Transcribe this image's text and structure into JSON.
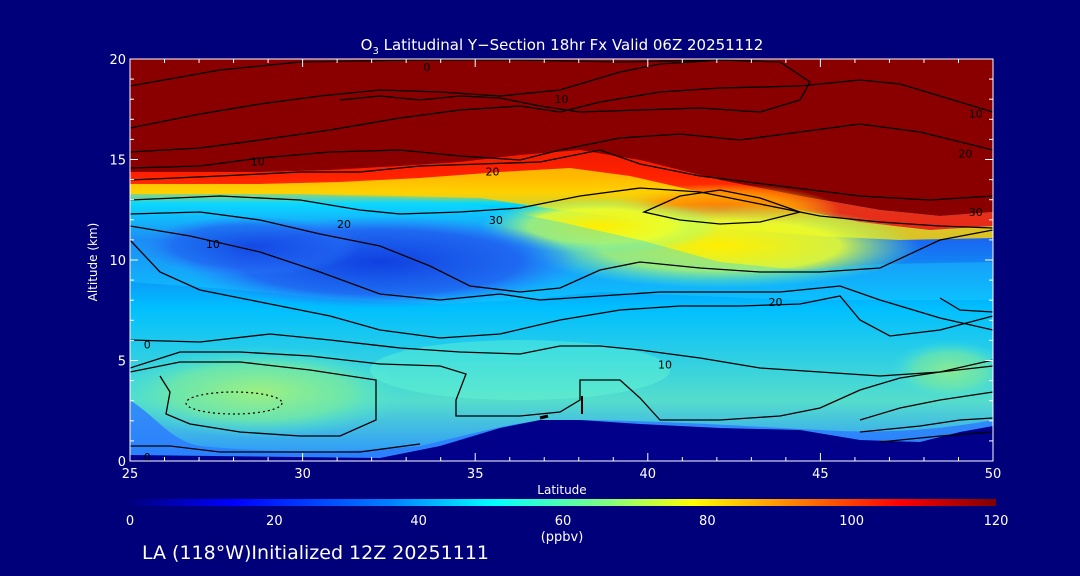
{
  "chart_data": {
    "type": "heatmap",
    "title_main": "O",
    "title_sub": "3",
    "title_rest": " Latitudinal Y−Section 18hr  Fx Valid 06Z 20251112",
    "xlabel": "Latitude",
    "ylabel": "Altitude (km)",
    "xlim": [
      25,
      50
    ],
    "ylim": [
      0,
      20
    ],
    "x_ticks": [
      "25",
      "30",
      "35",
      "40",
      "45",
      "50"
    ],
    "y_ticks": [
      "0",
      "5",
      "10",
      "15",
      "20"
    ],
    "colorbar": {
      "ticks": [
        "0",
        "20",
        "40",
        "60",
        "80",
        "100",
        "120"
      ],
      "range": [
        0,
        120
      ],
      "label": "(ppbv)"
    },
    "contour_labels": [
      {
        "text": "0",
        "lat": 33.6,
        "alt": 19.6
      },
      {
        "text": "10",
        "lat": 37.5,
        "alt": 18.0
      },
      {
        "text": "10",
        "lat": 28.7,
        "alt": 14.9
      },
      {
        "text": "20",
        "lat": 35.5,
        "alt": 14.4
      },
      {
        "text": "10",
        "lat": 49.5,
        "alt": 17.3
      },
      {
        "text": "20",
        "lat": 49.2,
        "alt": 15.3
      },
      {
        "text": "30",
        "lat": 49.5,
        "alt": 12.4
      },
      {
        "text": "20",
        "lat": 31.2,
        "alt": 11.8
      },
      {
        "text": "30",
        "lat": 35.6,
        "alt": 12.0
      },
      {
        "text": "10",
        "lat": 27.4,
        "alt": 10.8
      },
      {
        "text": "20",
        "lat": 43.7,
        "alt": 7.9
      },
      {
        "text": "10",
        "lat": 40.5,
        "alt": 4.8
      },
      {
        "text": "0",
        "lat": 25.5,
        "alt": 5.8
      },
      {
        "text": "0",
        "lat": 25.5,
        "alt": 0.2
      }
    ]
  },
  "footer": "LA (118°W)Initialized 12Z 20251111"
}
